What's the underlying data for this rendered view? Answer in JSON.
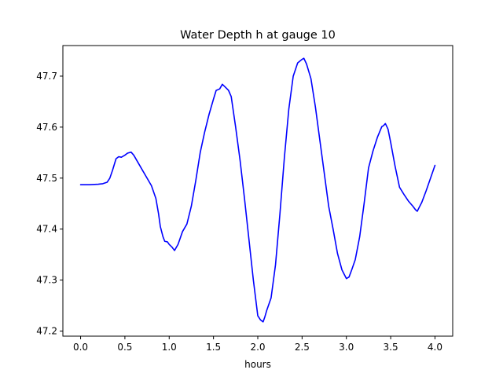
{
  "chart_data": {
    "type": "line",
    "title": "Water Depth h at gauge 10",
    "xlabel": "hours",
    "ylabel": "",
    "xlim": [
      -0.2,
      4.2
    ],
    "ylim": [
      47.19,
      47.76
    ],
    "xticks": [
      0.0,
      0.5,
      1.0,
      1.5,
      2.0,
      2.5,
      3.0,
      3.5,
      4.0
    ],
    "xtick_labels": [
      "0.0",
      "0.5",
      "1.0",
      "1.5",
      "2.0",
      "2.5",
      "3.0",
      "3.5",
      "4.0"
    ],
    "yticks": [
      47.2,
      47.3,
      47.4,
      47.5,
      47.6,
      47.7
    ],
    "ytick_labels": [
      "47.2",
      "47.3",
      "47.4",
      "47.5",
      "47.6",
      "47.7"
    ],
    "grid": false,
    "series": [
      {
        "color": "#0000ff",
        "x": [
          0.0,
          0.1,
          0.2,
          0.25,
          0.3,
          0.33,
          0.36,
          0.4,
          0.43,
          0.46,
          0.5,
          0.53,
          0.57,
          0.6,
          0.65,
          0.7,
          0.75,
          0.8,
          0.85,
          0.88,
          0.9,
          0.93,
          0.95,
          0.98,
          1.0,
          1.03,
          1.06,
          1.1,
          1.15,
          1.2,
          1.25,
          1.3,
          1.35,
          1.4,
          1.45,
          1.5,
          1.53,
          1.57,
          1.6,
          1.63,
          1.67,
          1.7,
          1.75,
          1.8,
          1.85,
          1.9,
          1.95,
          2.0,
          2.03,
          2.06,
          2.08,
          2.1,
          2.15,
          2.2,
          2.25,
          2.3,
          2.35,
          2.4,
          2.45,
          2.5,
          2.52,
          2.55,
          2.6,
          2.65,
          2.7,
          2.75,
          2.8,
          2.85,
          2.9,
          2.95,
          3.0,
          3.03,
          3.06,
          3.1,
          3.15,
          3.2,
          3.25,
          3.3,
          3.35,
          3.4,
          3.42,
          3.44,
          3.47,
          3.5,
          3.55,
          3.6,
          3.65,
          3.7,
          3.75,
          3.78,
          3.8,
          3.82,
          3.85,
          3.9,
          3.95,
          4.0
        ],
        "y": [
          47.487,
          47.487,
          47.488,
          47.489,
          47.492,
          47.5,
          47.515,
          47.538,
          47.542,
          47.541,
          47.545,
          47.549,
          47.551,
          47.545,
          47.53,
          47.515,
          47.5,
          47.485,
          47.46,
          47.43,
          47.405,
          47.385,
          47.376,
          47.375,
          47.37,
          47.365,
          47.358,
          47.37,
          47.395,
          47.41,
          47.445,
          47.495,
          47.55,
          47.59,
          47.625,
          47.655,
          47.672,
          47.675,
          47.684,
          47.679,
          47.672,
          47.66,
          47.6,
          47.535,
          47.46,
          47.38,
          47.3,
          47.23,
          47.222,
          47.218,
          47.228,
          47.24,
          47.265,
          47.33,
          47.43,
          47.54,
          47.635,
          47.7,
          47.726,
          47.733,
          47.735,
          47.724,
          47.695,
          47.64,
          47.575,
          47.51,
          47.445,
          47.4,
          47.352,
          47.32,
          47.303,
          47.306,
          47.32,
          47.34,
          47.385,
          47.45,
          47.52,
          47.553,
          47.58,
          47.601,
          47.603,
          47.607,
          47.596,
          47.57,
          47.523,
          47.482,
          47.468,
          47.455,
          47.445,
          47.438,
          47.435,
          47.442,
          47.452,
          47.475,
          47.5,
          47.525
        ]
      }
    ]
  }
}
